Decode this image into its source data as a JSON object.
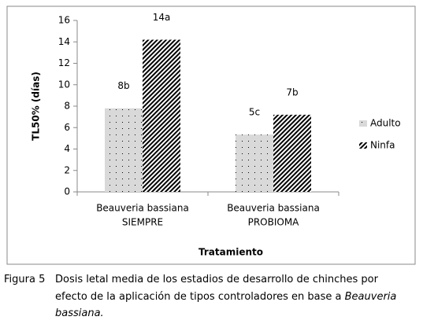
{
  "chart_data": {
    "type": "bar",
    "x_label": "Tratamiento",
    "y_label": "TL50% (días)",
    "categories": [
      [
        "Beauveria bassiana",
        "SIEMPRE"
      ],
      [
        "Beauveria bassiana",
        "PROBIOMA"
      ]
    ],
    "series": [
      {
        "name": "Adulto",
        "color": "#d9d9d9",
        "pattern": "dots",
        "values": [
          7.8,
          5.35
        ],
        "value_labels": [
          "8b",
          "5c"
        ]
      },
      {
        "name": "Ninfa",
        "color": "#000000",
        "pattern": "stripes",
        "values": [
          14.2,
          7.2
        ],
        "value_labels": [
          "14a",
          "7b"
        ]
      }
    ],
    "ylim": [
      0,
      16
    ],
    "yticks": [
      0,
      2,
      4,
      6,
      8,
      10,
      12,
      14,
      16
    ],
    "grid": false,
    "legend": "right"
  },
  "caption": {
    "label": "Figura 5",
    "text": "Dosis letal media de los estadios de desarrollo de chinches por efecto de la aplicación de tipos controladores en base a",
    "italic": "Beauveria bassiana."
  }
}
